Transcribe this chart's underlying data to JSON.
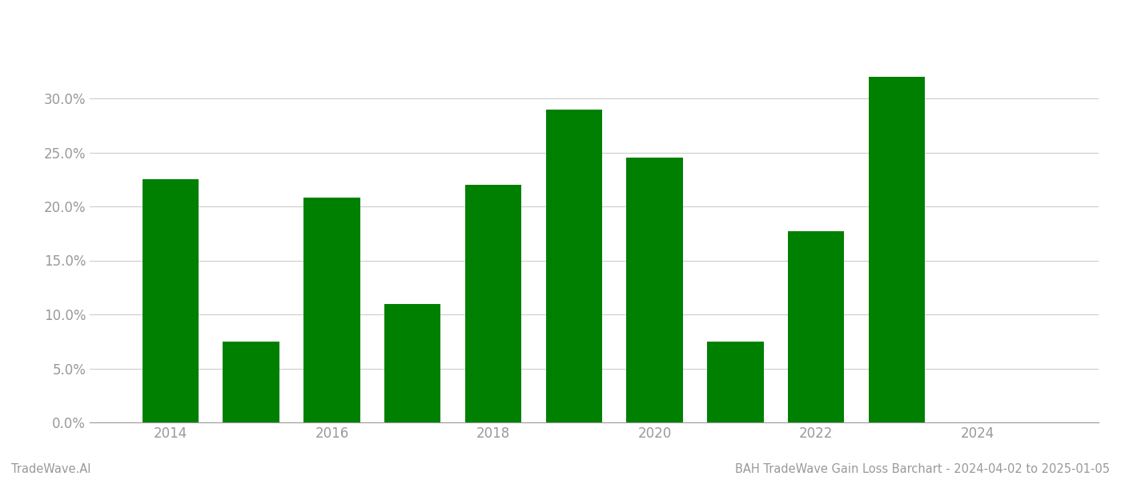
{
  "years": [
    2014,
    2015,
    2016,
    2017,
    2018,
    2019,
    2020,
    2021,
    2022,
    2023
  ],
  "values": [
    0.225,
    0.075,
    0.208,
    0.11,
    0.22,
    0.29,
    0.245,
    0.075,
    0.177,
    0.32
  ],
  "bar_color": "#008000",
  "background_color": "#ffffff",
  "footer_left": "TradeWave.AI",
  "footer_right": "BAH TradeWave Gain Loss Barchart - 2024-04-02 to 2025-01-05",
  "yticks": [
    0.0,
    0.05,
    0.1,
    0.15,
    0.2,
    0.25,
    0.3
  ],
  "ylim": [
    0,
    0.36
  ],
  "xlim_left": 2013.0,
  "xlim_right": 2025.5,
  "xtick_positions": [
    2014,
    2016,
    2018,
    2020,
    2022,
    2024
  ],
  "grid_color": "#cccccc",
  "bar_width": 0.7,
  "footer_fontsize": 10.5,
  "tick_fontsize": 12,
  "tick_color": "#999999"
}
